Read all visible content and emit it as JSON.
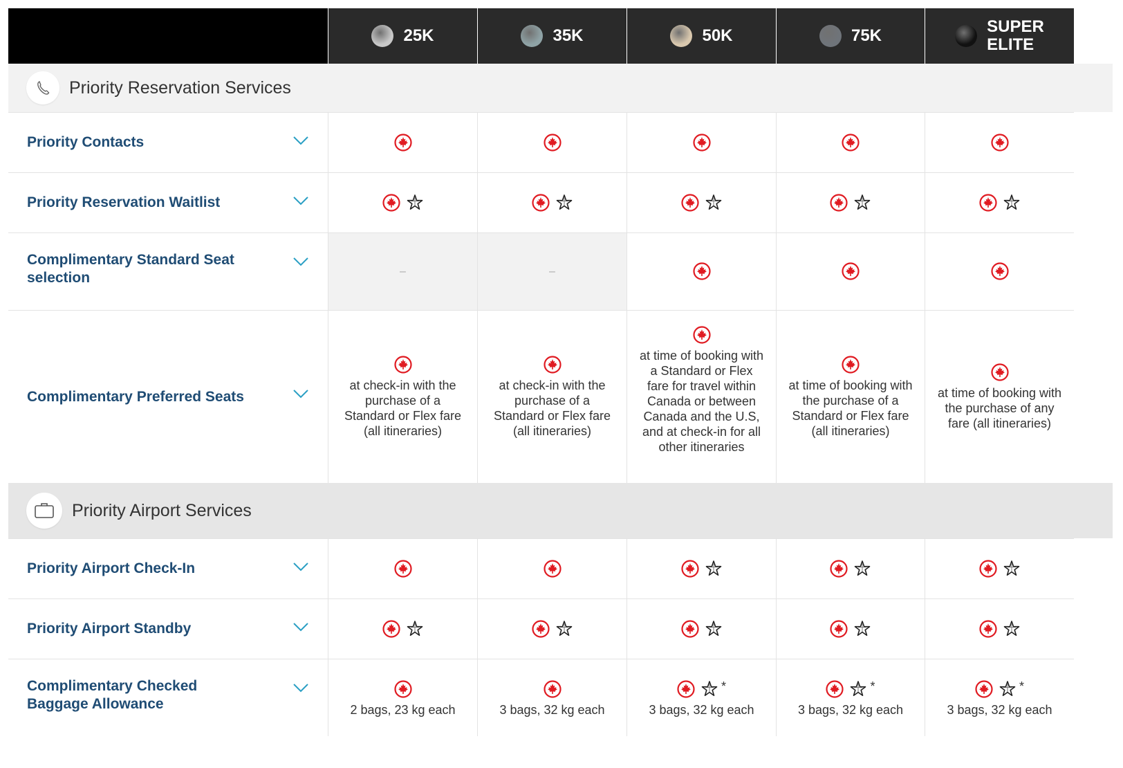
{
  "tiers": [
    {
      "label": "25K",
      "color": "#c8c8c8"
    },
    {
      "label": "35K",
      "color": "#8fa3a6"
    },
    {
      "label": "50K",
      "color": "#d9c8ae"
    },
    {
      "label": "75K",
      "color": "#6f747a"
    },
    {
      "label": "SUPER ELITE",
      "line1": "SUPER",
      "line2": "ELITE",
      "color": "#111111"
    }
  ],
  "sections": [
    {
      "title": "Priority Reservation Services",
      "icon": "phone-icon"
    },
    {
      "title": "Priority Airport Services",
      "icon": "briefcase-icon"
    }
  ],
  "rows": [
    {
      "label": "Priority Contacts",
      "cells": [
        {
          "icons": [
            "maple"
          ]
        },
        {
          "icons": [
            "maple"
          ]
        },
        {
          "icons": [
            "maple"
          ]
        },
        {
          "icons": [
            "maple"
          ]
        },
        {
          "icons": [
            "maple"
          ]
        }
      ]
    },
    {
      "label": "Priority Reservation Waitlist",
      "cells": [
        {
          "icons": [
            "maple",
            "star"
          ]
        },
        {
          "icons": [
            "maple",
            "star"
          ]
        },
        {
          "icons": [
            "maple",
            "star"
          ]
        },
        {
          "icons": [
            "maple",
            "star"
          ]
        },
        {
          "icons": [
            "maple",
            "star"
          ]
        }
      ]
    },
    {
      "label": "Complimentary Standard Seat selection",
      "cells": [
        {
          "text": "–",
          "na": true
        },
        {
          "text": "–",
          "na": true
        },
        {
          "icons": [
            "maple"
          ]
        },
        {
          "icons": [
            "maple"
          ]
        },
        {
          "icons": [
            "maple"
          ]
        }
      ]
    },
    {
      "label": "Complimentary Preferred Seats",
      "cells": [
        {
          "icons": [
            "maple"
          ],
          "text": "at check-in with the purchase of a Standard or Flex fare (all itineraries)"
        },
        {
          "icons": [
            "maple"
          ],
          "text": "at check-in with the purchase of a Standard or Flex fare (all itineraries)"
        },
        {
          "icons": [
            "maple"
          ],
          "text": "at time of booking with a Standard or Flex fare for travel within Canada or between Canada and the U.S, and at check-in for all other itineraries"
        },
        {
          "icons": [
            "maple"
          ],
          "text": "at time of booking with the purchase of a Standard or Flex fare (all itineraries)"
        },
        {
          "icons": [
            "maple"
          ],
          "text": "at time of booking with the purchase of any fare (all itineraries)"
        }
      ]
    },
    {
      "label": "Priority Airport Check-In",
      "cells": [
        {
          "icons": [
            "maple"
          ]
        },
        {
          "icons": [
            "maple"
          ]
        },
        {
          "icons": [
            "maple",
            "star"
          ]
        },
        {
          "icons": [
            "maple",
            "star"
          ]
        },
        {
          "icons": [
            "maple",
            "star"
          ]
        }
      ]
    },
    {
      "label": "Priority Airport Standby",
      "cells": [
        {
          "icons": [
            "maple",
            "star"
          ]
        },
        {
          "icons": [
            "maple",
            "star"
          ]
        },
        {
          "icons": [
            "maple",
            "star"
          ]
        },
        {
          "icons": [
            "maple",
            "star"
          ]
        },
        {
          "icons": [
            "maple",
            "star"
          ]
        }
      ]
    },
    {
      "label": "Complimentary Checked Baggage Allowance",
      "cells": [
        {
          "icons": [
            "maple"
          ],
          "text": "2 bags, 23 kg each"
        },
        {
          "icons": [
            "maple"
          ],
          "text": "3 bags, 32 kg each"
        },
        {
          "icons": [
            "maple",
            "star"
          ],
          "asterisk": "*",
          "text": "3 bags, 32 kg each"
        },
        {
          "icons": [
            "maple",
            "star"
          ],
          "asterisk": "*",
          "text": "3 bags, 32 kg each"
        },
        {
          "icons": [
            "maple",
            "star"
          ],
          "asterisk": "*",
          "text": "3 bags, 32 kg each"
        }
      ]
    }
  ]
}
